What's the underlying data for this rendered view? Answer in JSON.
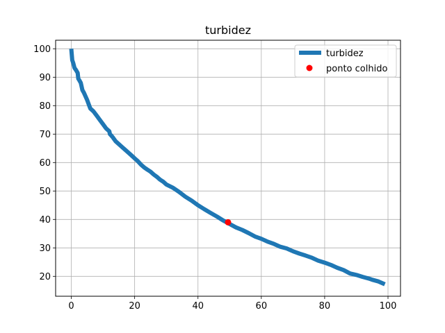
{
  "chart_data": {
    "type": "line",
    "title": "turbidez",
    "xlabel": "",
    "ylabel": "",
    "xlim": [
      -4.95,
      103.95
    ],
    "ylim": [
      13.0,
      103.0
    ],
    "xticks": [
      0,
      20,
      40,
      60,
      80,
      100
    ],
    "yticks": [
      20,
      30,
      40,
      50,
      60,
      70,
      80,
      90,
      100
    ],
    "grid": true,
    "legend_position": "top-right",
    "colors": {
      "line": "#1f77b4",
      "point": "#ff0000",
      "grid": "#b0b0b0"
    },
    "series": [
      {
        "name": "turbidez",
        "kind": "line",
        "x": [
          0,
          0.3,
          0.6,
          1,
          1.5,
          2,
          2.2,
          2.5,
          3,
          3.5,
          4,
          5,
          5.5,
          6,
          7,
          8,
          9,
          10,
          11,
          12,
          12.2,
          13,
          14,
          15,
          16,
          17,
          18,
          19,
          20,
          21,
          22,
          23,
          24,
          25,
          26,
          27,
          28,
          29,
          30,
          32,
          34,
          36,
          38,
          40,
          42,
          44,
          46,
          48,
          50,
          52,
          54,
          56,
          58,
          60,
          62,
          64,
          66,
          68,
          70,
          72,
          74,
          76,
          78,
          80,
          82,
          84,
          86,
          88,
          90,
          92,
          94,
          95,
          97,
          99
        ],
        "values": [
          100,
          96,
          95,
          93.3,
          92.5,
          91.5,
          89.5,
          89,
          88,
          85.5,
          84.5,
          82,
          80.5,
          79,
          78,
          76.5,
          75,
          73.5,
          72,
          71,
          70,
          69,
          67.5,
          66.5,
          65.5,
          64.5,
          63.5,
          62.5,
          61.5,
          60.5,
          59.3,
          58.3,
          57.5,
          56.8,
          55.8,
          55,
          54,
          53.3,
          52.3,
          51.2,
          49.7,
          48,
          46.6,
          45,
          43.6,
          42.3,
          41,
          39.6,
          38.4,
          37.2,
          36.3,
          35.2,
          34,
          33.2,
          32.2,
          31.4,
          30.4,
          29.8,
          28.8,
          28,
          27.3,
          26.5,
          25.5,
          24.8,
          24,
          23,
          22.2,
          21,
          20.5,
          19.8,
          19.2,
          18.8,
          18.2,
          17.2
        ]
      },
      {
        "name": "ponto colhido",
        "kind": "scatter",
        "x": [
          49.5
        ],
        "values": [
          39
        ]
      }
    ]
  }
}
